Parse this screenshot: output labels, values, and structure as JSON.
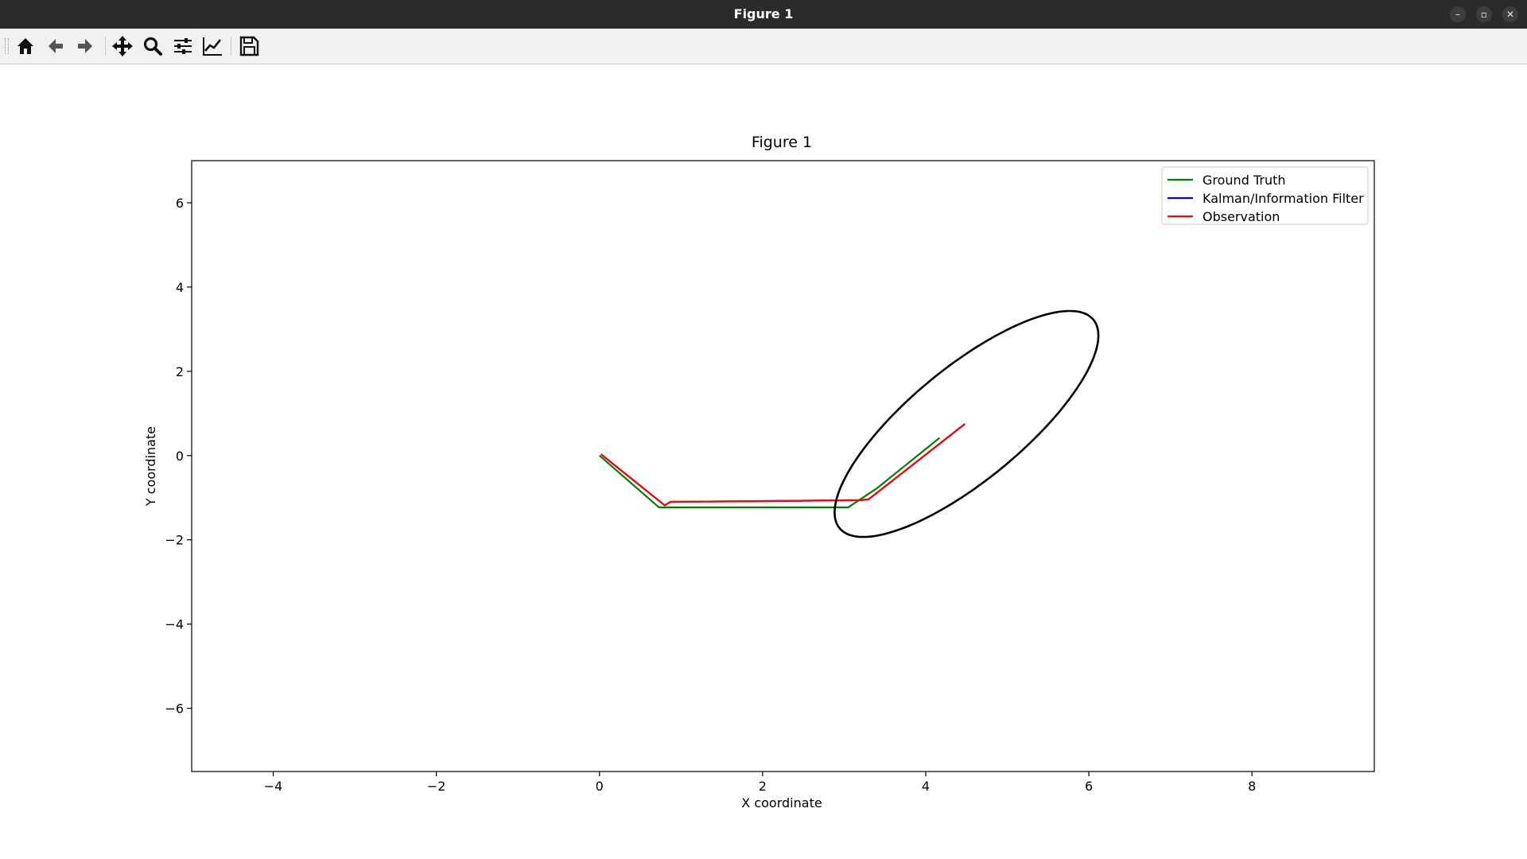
{
  "window": {
    "title": "Figure 1"
  },
  "toolbar": {
    "buttons": [
      {
        "name": "home",
        "icon": "home-icon"
      },
      {
        "name": "back",
        "icon": "arrow-left-icon"
      },
      {
        "name": "forward",
        "icon": "arrow-right-icon"
      },
      {
        "name": "pan",
        "icon": "move-icon"
      },
      {
        "name": "zoom",
        "icon": "magnifier-icon"
      },
      {
        "name": "configure-subplots",
        "icon": "sliders-icon"
      },
      {
        "name": "edit-axis",
        "icon": "line-chart-icon"
      },
      {
        "name": "save",
        "icon": "floppy-disk-icon"
      }
    ]
  },
  "chart_data": {
    "type": "line",
    "title": "Figure 1",
    "xlabel": "X coordinate",
    "ylabel": "Y coordinate",
    "xlim": [
      -5,
      9.5
    ],
    "ylim": [
      -7.5,
      7
    ],
    "xticks": [
      -4,
      -2,
      0,
      2,
      4,
      6,
      8
    ],
    "yticks": [
      -6,
      -4,
      -2,
      0,
      2,
      4,
      6
    ],
    "xtick_labels": [
      "−4",
      "−2",
      "0",
      "2",
      "4",
      "6",
      "8"
    ],
    "ytick_labels": [
      "−6",
      "−4",
      "−2",
      "0",
      "2",
      "4",
      "6"
    ],
    "grid": false,
    "legend_position": "top-right",
    "series": [
      {
        "name": "Ground Truth",
        "color": "#008000",
        "x": [
          0,
          0.73,
          3.05,
          3.4,
          4.17
        ],
        "y": [
          0,
          -1.23,
          -1.23,
          -0.78,
          0.42
        ]
      },
      {
        "name": "Kalman/Information Filter",
        "color": "#0000ff",
        "x": [
          0.02,
          0.8,
          0.87,
          3.2,
          3.3,
          4.48
        ],
        "y": [
          0.03,
          -1.18,
          -1.1,
          -1.06,
          -1.04,
          0.75
        ]
      },
      {
        "name": "Observation",
        "color": "#ff0000",
        "x": [
          0.02,
          0.8,
          0.87,
          3.2,
          3.3,
          4.48
        ],
        "y": [
          0.03,
          -1.18,
          -1.1,
          -1.06,
          -1.04,
          0.75
        ]
      }
    ],
    "ellipse": {
      "color": "#000000",
      "center": [
        4.5,
        0.75
      ],
      "semi_axes": [
        3.0,
        0.9
      ],
      "angle_deg": 62
    }
  }
}
